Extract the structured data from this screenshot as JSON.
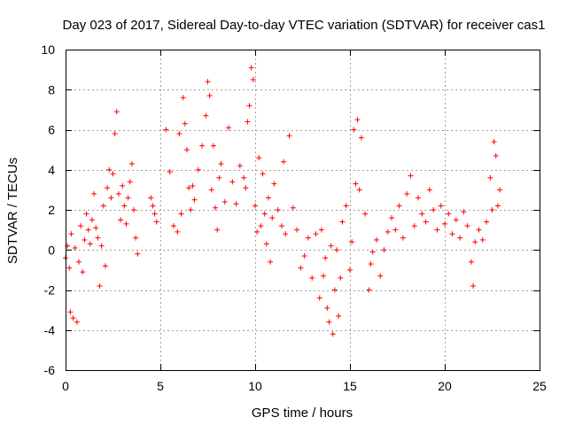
{
  "chart_data": {
    "type": "scatter",
    "title": "Day 023 of 2017, Sidereal Day-to-day VTEC variation (SDTVAR) for receiver cas1",
    "xlabel": "GPS time / hours",
    "ylabel": "SDTVAR / TECUs",
    "xlim": [
      0,
      25
    ],
    "ylim": [
      -6,
      10
    ],
    "xticks": [
      0,
      5,
      10,
      15,
      20,
      25
    ],
    "yticks": [
      -6,
      -4,
      -2,
      0,
      2,
      4,
      6,
      8,
      10
    ],
    "grid": true,
    "marker": "+",
    "color": "#ff0000",
    "series": [
      {
        "name": "SDTVAR",
        "x": [
          0.0,
          0.1,
          0.2,
          0.25,
          0.3,
          0.4,
          0.5,
          0.6,
          0.7,
          0.8,
          0.9,
          1.0,
          1.1,
          1.2,
          1.3,
          1.4,
          1.5,
          1.6,
          1.7,
          1.8,
          1.9,
          2.0,
          2.1,
          2.2,
          2.3,
          2.4,
          2.5,
          2.6,
          2.7,
          2.8,
          2.9,
          3.0,
          3.1,
          3.2,
          3.3,
          3.4,
          3.5,
          3.6,
          3.7,
          3.8,
          4.5,
          4.6,
          4.7,
          4.8,
          5.3,
          5.5,
          5.7,
          5.9,
          6.0,
          6.1,
          6.2,
          6.3,
          6.4,
          6.5,
          6.6,
          6.7,
          6.8,
          7.0,
          7.2,
          7.4,
          7.5,
          7.6,
          7.7,
          7.8,
          7.9,
          8.0,
          8.1,
          8.2,
          8.4,
          8.6,
          8.8,
          9.0,
          9.2,
          9.4,
          9.5,
          9.6,
          9.7,
          9.8,
          9.9,
          10.0,
          10.1,
          10.2,
          10.3,
          10.4,
          10.5,
          10.6,
          10.7,
          10.8,
          10.9,
          11.0,
          11.2,
          11.4,
          11.5,
          11.6,
          11.8,
          12.0,
          12.2,
          12.4,
          12.6,
          12.8,
          13.0,
          13.2,
          13.4,
          13.5,
          13.6,
          13.7,
          13.8,
          13.9,
          14.0,
          14.1,
          14.2,
          14.3,
          14.4,
          14.5,
          14.6,
          14.8,
          15.0,
          15.1,
          15.2,
          15.3,
          15.4,
          15.5,
          15.6,
          15.8,
          16.0,
          16.1,
          16.2,
          16.4,
          16.6,
          16.8,
          17.0,
          17.2,
          17.4,
          17.6,
          17.8,
          18.0,
          18.2,
          18.4,
          18.6,
          18.8,
          19.0,
          19.2,
          19.4,
          19.6,
          19.8,
          20.0,
          20.2,
          20.4,
          20.6,
          20.8,
          21.0,
          21.2,
          21.4,
          21.5,
          21.6,
          21.8,
          22.0,
          22.2,
          22.4,
          22.5,
          22.6,
          22.7,
          22.8,
          22.9
        ],
        "y": [
          -0.4,
          0.2,
          -0.9,
          -3.1,
          0.8,
          -3.4,
          0.1,
          -3.6,
          -0.6,
          1.2,
          -1.1,
          0.5,
          1.8,
          1.0,
          0.3,
          1.5,
          2.8,
          1.1,
          0.6,
          -1.8,
          0.2,
          2.2,
          -0.8,
          3.1,
          4.0,
          2.6,
          3.8,
          5.8,
          6.9,
          2.8,
          1.5,
          3.2,
          2.2,
          1.3,
          2.6,
          3.4,
          4.3,
          2.0,
          0.6,
          -0.2,
          2.6,
          2.2,
          1.8,
          1.4,
          6.0,
          3.9,
          1.2,
          0.9,
          5.8,
          1.8,
          7.6,
          6.3,
          5.0,
          3.1,
          2.0,
          3.2,
          2.5,
          4.0,
          5.2,
          6.7,
          8.4,
          7.7,
          3.0,
          5.2,
          2.1,
          1.0,
          3.6,
          4.3,
          2.4,
          6.1,
          3.4,
          2.3,
          4.2,
          3.6,
          3.1,
          6.4,
          7.2,
          9.1,
          8.5,
          2.2,
          0.9,
          4.6,
          1.2,
          3.8,
          1.8,
          0.3,
          2.6,
          -0.6,
          1.6,
          3.3,
          2.0,
          1.2,
          4.4,
          0.8,
          5.7,
          2.1,
          1.0,
          -0.9,
          -0.3,
          0.6,
          -1.4,
          0.8,
          -2.4,
          1.0,
          -1.3,
          -0.4,
          -2.9,
          -3.6,
          0.2,
          -4.2,
          -2.0,
          0.0,
          -3.3,
          -1.4,
          1.4,
          2.2,
          -1.0,
          0.4,
          6.0,
          3.3,
          6.5,
          3.0,
          5.6,
          1.8,
          -2.0,
          -0.7,
          -0.1,
          0.5,
          -1.3,
          0.0,
          0.9,
          1.6,
          1.0,
          2.2,
          0.6,
          2.8,
          3.7,
          1.2,
          2.6,
          1.8,
          1.4,
          3.0,
          2.0,
          1.0,
          2.2,
          1.3,
          1.8,
          0.8,
          1.5,
          0.6,
          1.9,
          1.2,
          -0.6,
          -1.8,
          0.4,
          1.0,
          0.5,
          1.4,
          3.6,
          2.0,
          5.4,
          4.7,
          2.2,
          3.0
        ]
      }
    ]
  }
}
